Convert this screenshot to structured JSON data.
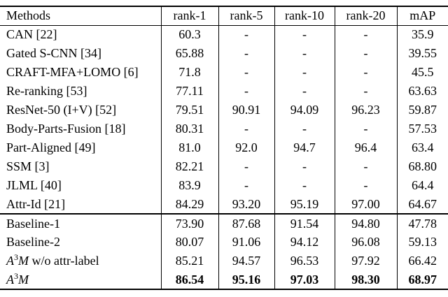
{
  "table": {
    "columns": [
      "Methods",
      "rank-1",
      "rank-5",
      "rank-10",
      "rank-20",
      "mAP"
    ],
    "sections": [
      {
        "name": "published-methods",
        "rows": [
          {
            "method": "CAN [22]",
            "values": [
              "60.3",
              "-",
              "-",
              "-",
              "35.9"
            ]
          },
          {
            "method": "Gated S-CNN [34]",
            "values": [
              "65.88",
              "-",
              "-",
              "-",
              "39.55"
            ]
          },
          {
            "method": "CRAFT-MFA+LOMO [6]",
            "values": [
              "71.8",
              "-",
              "-",
              "-",
              "45.5"
            ]
          },
          {
            "method": "Re-ranking [53]",
            "values": [
              "77.11",
              "-",
              "-",
              "-",
              "63.63"
            ]
          },
          {
            "method": "ResNet-50 (I+V) [52]",
            "values": [
              "79.51",
              "90.91",
              "94.09",
              "96.23",
              "59.87"
            ]
          },
          {
            "method": "Body-Parts-Fusion [18]",
            "values": [
              "80.31",
              "-",
              "-",
              "-",
              "57.53"
            ]
          },
          {
            "method": "Part-Aligned [49]",
            "values": [
              "81.0",
              "92.0",
              "94.7",
              "96.4",
              "63.4"
            ]
          },
          {
            "method": "SSM [3]",
            "values": [
              "82.21",
              "-",
              "-",
              "-",
              "68.80"
            ]
          },
          {
            "method": "JLML [40]",
            "values": [
              "83.9",
              "-",
              "-",
              "-",
              "64.4"
            ]
          },
          {
            "method": "Attr-Id [21]",
            "values": [
              "84.29",
              "93.20",
              "95.19",
              "97.00",
              "64.67"
            ]
          }
        ]
      },
      {
        "name": "baselines-and-proposed",
        "rows": [
          {
            "method": "Baseline-1",
            "values": [
              "73.90",
              "87.68",
              "91.54",
              "94.80",
              "47.78"
            ]
          },
          {
            "method": "Baseline-2",
            "values": [
              "80.07",
              "91.06",
              "94.12",
              "96.08",
              "59.13"
            ]
          },
          {
            "method_parts": [
              {
                "text": "A",
                "italic": true
              },
              {
                "text": "3",
                "sup": true
              },
              {
                "text": "M",
                "italic": true
              },
              {
                "text": " w/o attr-label"
              }
            ],
            "values": [
              "85.21",
              "94.57",
              "96.53",
              "97.92",
              "66.42"
            ]
          },
          {
            "method_parts": [
              {
                "text": "A",
                "italic": true
              },
              {
                "text": "3",
                "sup": true
              },
              {
                "text": "M",
                "italic": true
              }
            ],
            "values": [
              "86.54",
              "95.16",
              "97.03",
              "98.30",
              "68.97"
            ],
            "bold_values": true
          }
        ]
      }
    ]
  }
}
